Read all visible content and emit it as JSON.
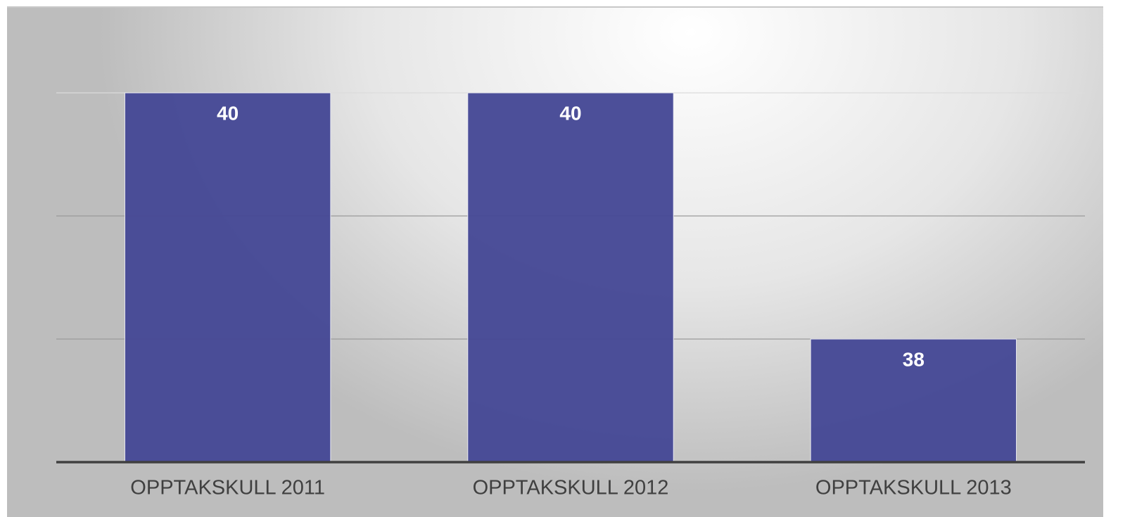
{
  "chart_data": {
    "type": "bar",
    "categories": [
      "OPPTAKSKULL 2011",
      "OPPTAKSKULL 2012",
      "OPPTAKSKULL 2013"
    ],
    "values": [
      40,
      40,
      38
    ],
    "color": "#464996",
    "ylim": [
      37,
      40
    ],
    "yticks": [
      37,
      38,
      39,
      40
    ],
    "grid": true
  }
}
